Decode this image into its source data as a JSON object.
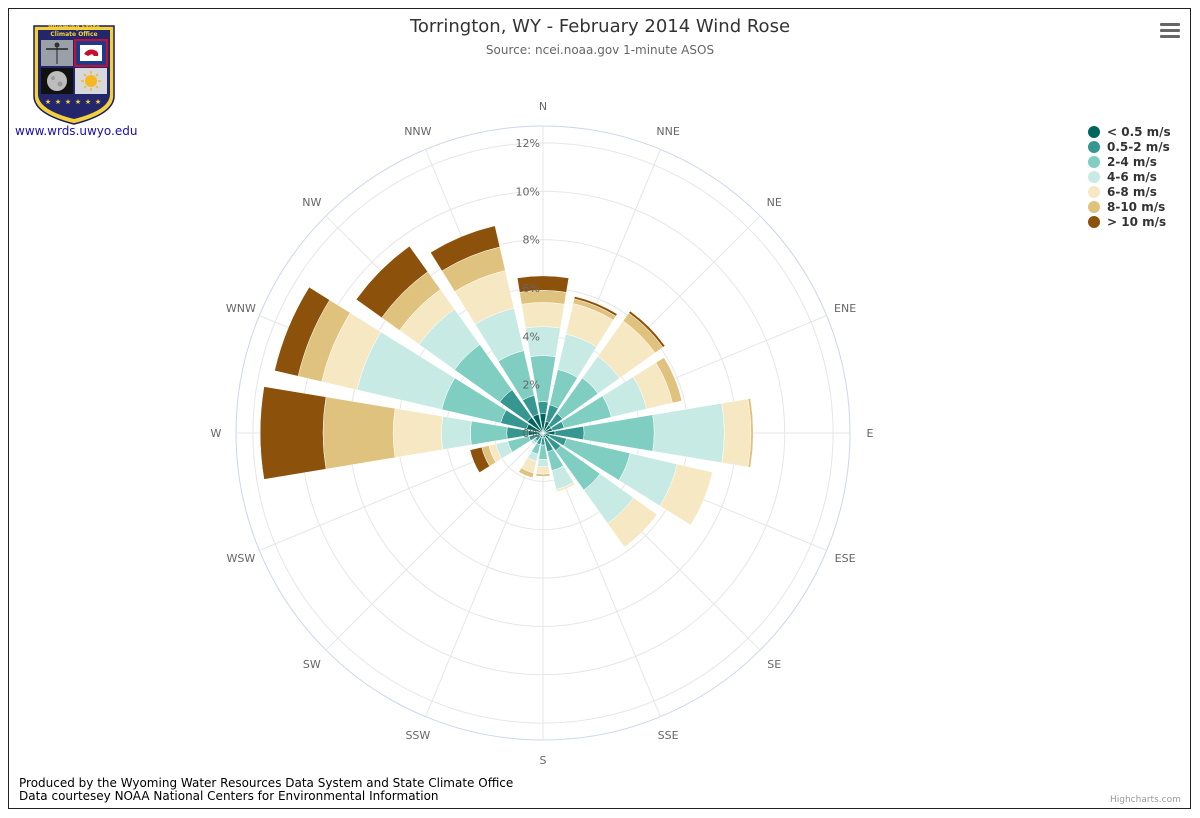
{
  "header": {
    "title": "Torrington, WY - February 2014 Wind Rose",
    "subtitle": "Source: ncei.noaa.gov 1-minute ASOS"
  },
  "logo": {
    "line1": "Wyoming State",
    "line2": "Climate Office",
    "link": "www.wrds.uwyo.edu"
  },
  "footer": {
    "line1": "Produced by the Wyoming Water Resources Data System and State Climate Office",
    "line2": "Data courtesey NOAA National Centers for Environmental Information"
  },
  "credits": "Highcharts.com",
  "chart_data": {
    "type": "windrose",
    "title": "Torrington, WY - February 2014 Wind Rose",
    "subtitle": "Source: ncei.noaa.gov 1-minute ASOS",
    "legend_position": "top-right",
    "grid": true,
    "radial_axis": {
      "min": 0,
      "max": 12.7,
      "ticks": [
        0,
        2,
        4,
        6,
        8,
        10,
        12
      ],
      "tick_labels": [
        "0%",
        "2%",
        "4%",
        "6%",
        "8%",
        "10%",
        "12%"
      ],
      "unit": "%"
    },
    "categories": [
      "N",
      "NNE",
      "NE",
      "ENE",
      "E",
      "ESE",
      "SE",
      "SSE",
      "S",
      "SSW",
      "SW",
      "WSW",
      "W",
      "WNW",
      "NW",
      "NNW"
    ],
    "series": [
      {
        "name": "< 0.5 m/s",
        "color": "#01665e",
        "values": [
          0.8,
          0.5,
          0.4,
          0.4,
          0.5,
          0.3,
          0.3,
          0.2,
          0.2,
          0.2,
          0.1,
          0.2,
          0.6,
          0.7,
          0.8,
          0.8
        ]
      },
      {
        "name": "0.5-2 m/s",
        "color": "#35978f",
        "values": [
          0.5,
          0.7,
          0.6,
          0.5,
          1.2,
          0.7,
          0.6,
          0.6,
          0.3,
          0.3,
          0.3,
          0.4,
          0.9,
          1.1,
          1.4,
          0.8
        ]
      },
      {
        "name": "2-4 m/s",
        "color": "#80cdc1",
        "values": [
          1.9,
          1.5,
          1.8,
          2.0,
          2.9,
          2.7,
          2.0,
          0.8,
          0.6,
          0.4,
          0.1,
          0.9,
          1.5,
          2.5,
          2.3,
          1.9
        ]
      },
      {
        "name": "4-6 m/s",
        "color": "#c7eae5",
        "values": [
          1.2,
          1.5,
          1.1,
          1.5,
          2.9,
          2.0,
          1.7,
          0.8,
          0.3,
          0.3,
          0.1,
          0.5,
          1.2,
          3.6,
          1.8,
          1.8
        ]
      },
      {
        "name": "6-8 m/s",
        "color": "#f6e8c3",
        "values": [
          1.0,
          1.3,
          1.8,
          1.1,
          1.1,
          1.5,
          1.2,
          0.1,
          0.3,
          0.5,
          0.0,
          0.3,
          2.0,
          1.5,
          1.0,
          1.6
        ]
      },
      {
        "name": "8-10 m/s",
        "color": "#dfc27d",
        "values": [
          0.5,
          0.2,
          0.4,
          0.4,
          0.1,
          0.0,
          0.0,
          0.0,
          0.1,
          0.2,
          0.0,
          0.3,
          2.9,
          1.0,
          0.9,
          1.0
        ]
      },
      {
        "name": "> 10 m/s",
        "color": "#8c510a",
        "values": [
          0.6,
          0.1,
          0.1,
          0.0,
          0.0,
          0.0,
          0.0,
          0.0,
          0.0,
          0.0,
          0.0,
          0.5,
          2.6,
          1.0,
          1.3,
          0.9
        ]
      }
    ]
  }
}
